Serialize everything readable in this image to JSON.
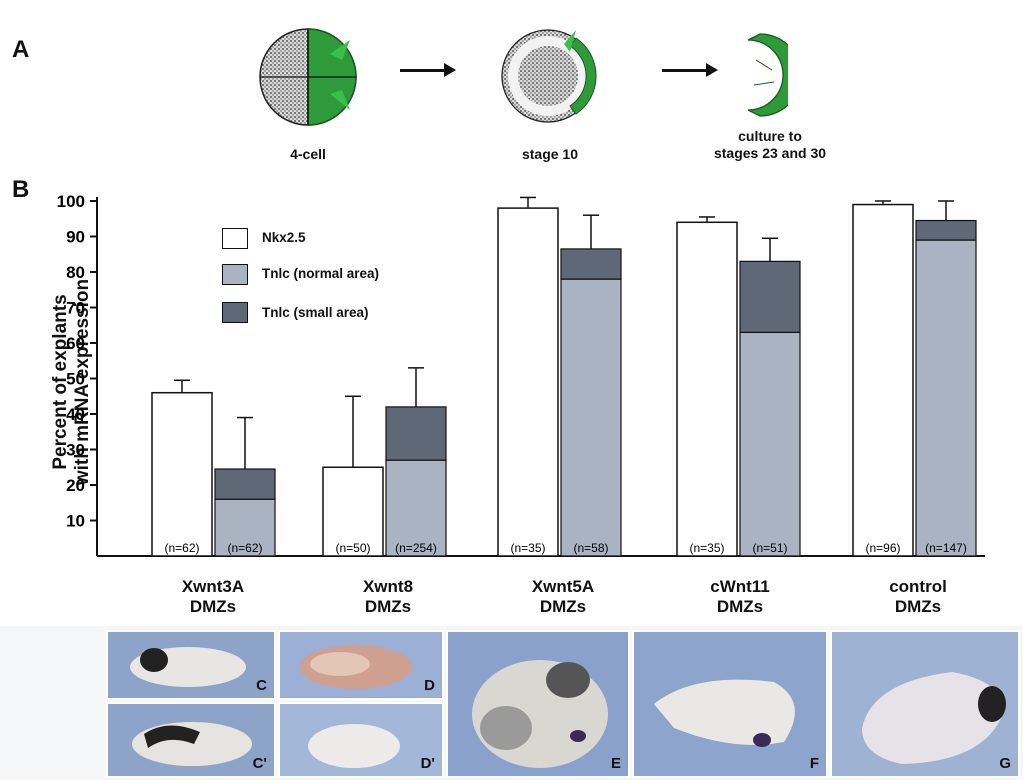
{
  "panel_a": {
    "letter": "A",
    "stages": [
      "4-cell",
      "stage 10",
      "culture to\nstages 23 and 30"
    ]
  },
  "panel_b": {
    "letter": "B"
  },
  "chart_data": {
    "type": "bar",
    "ylabel": "Percent of explants\nwith mRNA expression",
    "ylim": [
      0,
      100
    ],
    "yticks": [
      10,
      20,
      30,
      40,
      50,
      60,
      70,
      80,
      90,
      100
    ],
    "categories": [
      "Xwnt3A\nDMZs",
      "Xwnt8\nDMZs",
      "Xwnt5A\nDMZs",
      "cWnt11\nDMZs",
      "control\nDMZs"
    ],
    "legend": [
      {
        "label": "Nkx2.5",
        "color": "#ffffff"
      },
      {
        "label": "Tnlc (normal area)",
        "color": "#aab3c1"
      },
      {
        "label": "Tnlc (small area)",
        "color": "#5f6877"
      }
    ],
    "series": [
      {
        "name": "Nkx2.5",
        "values": [
          46,
          25,
          98,
          94,
          99
        ],
        "err": [
          3.5,
          20,
          3,
          1.5,
          1
        ]
      },
      {
        "name": "Tnlc (normal area)",
        "values": [
          16,
          27,
          78,
          63,
          89
        ]
      },
      {
        "name": "Tnlc (small area)",
        "values": [
          8.5,
          15,
          8.5,
          20,
          5.5
        ],
        "err": [
          14.5,
          11,
          9.5,
          6.5,
          5.5
        ]
      }
    ],
    "n_labels": [
      [
        "(n=62)",
        "(n=62)"
      ],
      [
        "(n=50)",
        "(n=254)"
      ],
      [
        "(n=35)",
        "(n=58)"
      ],
      [
        "(n=35)",
        "(n=51)"
      ],
      [
        "(n=96)",
        "(n=147)"
      ]
    ]
  },
  "photos": {
    "letters": [
      "C",
      "C'",
      "D",
      "D'",
      "E",
      "F",
      "G"
    ]
  },
  "colors": {
    "cell_green": "#2e9a3a",
    "bar_light": "#aab3c1",
    "bar_dark": "#5f6877"
  }
}
